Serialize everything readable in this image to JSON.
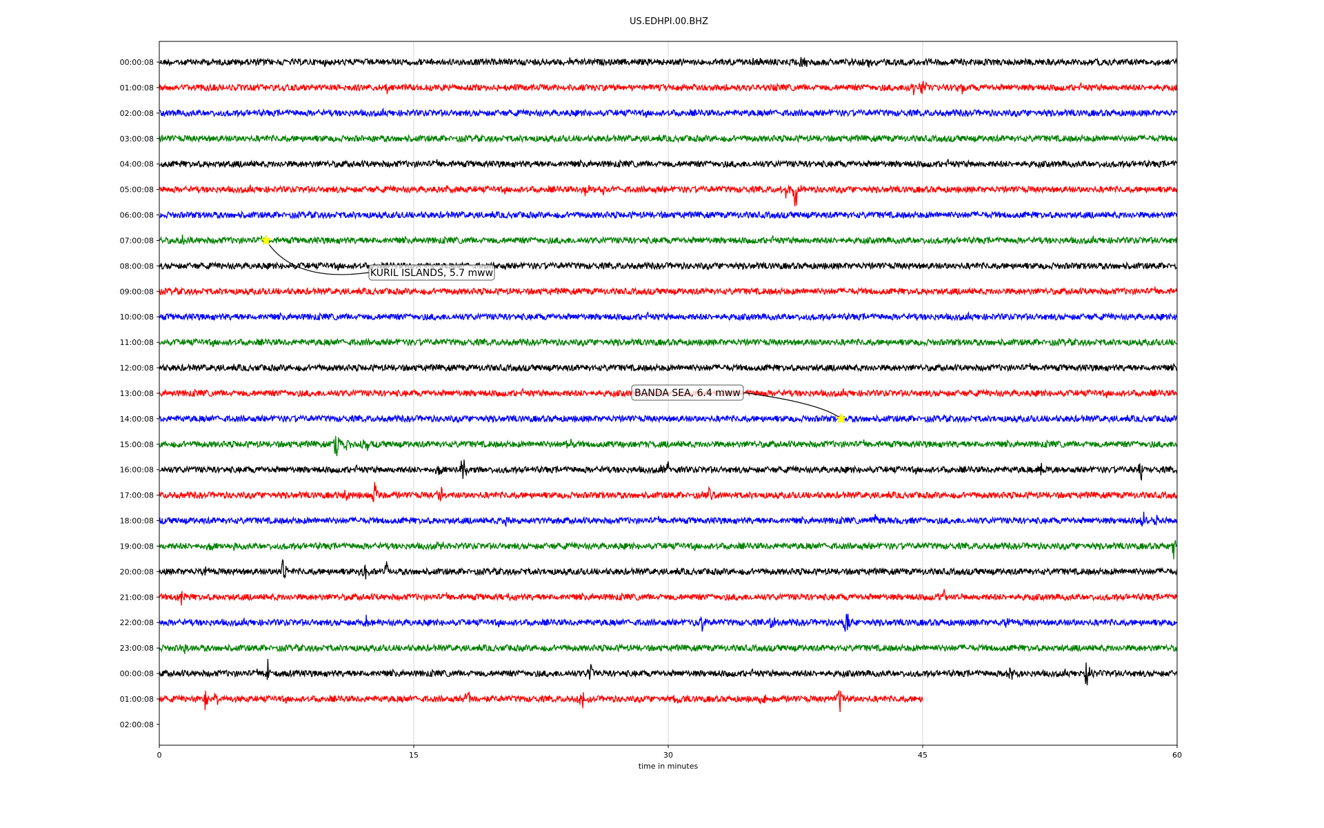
{
  "chart_data": {
    "type": "line",
    "title": "US.EDHPI.00.BHZ",
    "xlabel": "time in minutes",
    "xlim": [
      0,
      60
    ],
    "xticks": [
      "0",
      "15",
      "30",
      "45",
      "60"
    ],
    "xtick_values": [
      0,
      15,
      30,
      45,
      60
    ],
    "grid": "vertical dotted at x ticks",
    "row_labels": [
      "00:00:08",
      "01:00:08",
      "02:00:08",
      "03:00:08",
      "04:00:08",
      "05:00:08",
      "06:00:08",
      "07:00:08",
      "08:00:08",
      "09:00:08",
      "10:00:08",
      "11:00:08",
      "12:00:08",
      "13:00:08",
      "14:00:08",
      "15:00:08",
      "16:00:08",
      "17:00:08",
      "18:00:08",
      "19:00:08",
      "20:00:08",
      "21:00:08",
      "22:00:08",
      "23:00:08",
      "00:00:08",
      "01:00:08",
      "02:00:08"
    ],
    "trace_colors": [
      "#000000",
      "#ff0000",
      "#0000ff",
      "#008000"
    ],
    "trace_end_minutes": {
      "25": 45,
      "26": 0
    },
    "events": [
      {
        "row": 0,
        "t": 37.9,
        "amp": 0.3
      },
      {
        "row": 0,
        "t": 40.8,
        "amp": 0.3
      },
      {
        "row": 0,
        "t": 41.7,
        "amp": 0.35
      },
      {
        "row": 1,
        "t": 13.4,
        "amp": 0.25
      },
      {
        "row": 1,
        "t": 44.5,
        "amp": 0.5
      },
      {
        "row": 1,
        "t": 45.0,
        "amp": 0.45
      },
      {
        "row": 1,
        "t": 47.3,
        "amp": 0.4
      },
      {
        "row": 3,
        "t": 12.5,
        "amp": 0.2
      },
      {
        "row": 5,
        "t": 17.0,
        "amp": 0.2
      },
      {
        "row": 5,
        "t": 25.2,
        "amp": 0.4
      },
      {
        "row": 5,
        "t": 26.2,
        "amp": 0.3
      },
      {
        "row": 5,
        "t": 37.5,
        "amp": 0.9
      },
      {
        "row": 5,
        "t": 36.9,
        "amp": 0.4
      },
      {
        "row": 7,
        "t": 1.4,
        "amp": 0.25
      },
      {
        "row": 15,
        "t": 10.4,
        "amp": 0.8
      },
      {
        "row": 15,
        "t": 11.0,
        "amp": 0.35
      },
      {
        "row": 15,
        "t": 12.2,
        "amp": 0.3
      },
      {
        "row": 15,
        "t": 24.2,
        "amp": 0.35
      },
      {
        "row": 15,
        "t": 27.2,
        "amp": 0.2
      },
      {
        "row": 16,
        "t": 16.5,
        "amp": 0.3
      },
      {
        "row": 16,
        "t": 17.9,
        "amp": 0.6
      },
      {
        "row": 16,
        "t": 30.0,
        "amp": 0.3
      },
      {
        "row": 16,
        "t": 52.0,
        "amp": 0.3
      },
      {
        "row": 16,
        "t": 57.9,
        "amp": 0.5
      },
      {
        "row": 17,
        "t": 11.0,
        "amp": 0.3
      },
      {
        "row": 17,
        "t": 12.7,
        "amp": 0.7
      },
      {
        "row": 17,
        "t": 16.6,
        "amp": 0.4
      },
      {
        "row": 17,
        "t": 32.4,
        "amp": 0.3
      },
      {
        "row": 18,
        "t": 20.5,
        "amp": 0.3
      },
      {
        "row": 18,
        "t": 42.2,
        "amp": 0.2
      },
      {
        "row": 18,
        "t": 58.0,
        "amp": 0.4
      },
      {
        "row": 18,
        "t": 58.8,
        "amp": 0.3
      },
      {
        "row": 19,
        "t": 3.0,
        "amp": 0.2
      },
      {
        "row": 19,
        "t": 16.6,
        "amp": 0.3
      },
      {
        "row": 19,
        "t": 59.8,
        "amp": 0.6
      },
      {
        "row": 20,
        "t": 2.7,
        "amp": 0.3
      },
      {
        "row": 20,
        "t": 7.3,
        "amp": 0.5
      },
      {
        "row": 20,
        "t": 12.1,
        "amp": 0.35
      },
      {
        "row": 20,
        "t": 13.4,
        "amp": 0.4
      },
      {
        "row": 21,
        "t": 1.3,
        "amp": 0.3
      },
      {
        "row": 21,
        "t": 20.5,
        "amp": 0.2
      },
      {
        "row": 21,
        "t": 46.2,
        "amp": 0.4
      },
      {
        "row": 22,
        "t": 12.2,
        "amp": 0.25
      },
      {
        "row": 22,
        "t": 32.0,
        "amp": 0.3
      },
      {
        "row": 22,
        "t": 36.1,
        "amp": 0.3
      },
      {
        "row": 22,
        "t": 40.5,
        "amp": 0.6
      },
      {
        "row": 22,
        "t": 50.0,
        "amp": 0.4
      },
      {
        "row": 23,
        "t": 1.5,
        "amp": 0.25
      },
      {
        "row": 24,
        "t": 6.4,
        "amp": 0.7
      },
      {
        "row": 24,
        "t": 25.4,
        "amp": 0.4
      },
      {
        "row": 24,
        "t": 50.2,
        "amp": 0.3
      },
      {
        "row": 24,
        "t": 54.7,
        "amp": 0.7
      },
      {
        "row": 25,
        "t": 2.7,
        "amp": 0.4
      },
      {
        "row": 25,
        "t": 3.4,
        "amp": 0.35
      },
      {
        "row": 25,
        "t": 18.2,
        "amp": 0.5
      },
      {
        "row": 25,
        "t": 24.9,
        "amp": 0.5
      },
      {
        "row": 25,
        "t": 30.5,
        "amp": 0.3
      },
      {
        "row": 25,
        "t": 35.6,
        "amp": 0.4
      },
      {
        "row": 25,
        "t": 40.1,
        "amp": 0.6
      }
    ],
    "annotations": [
      {
        "text": "KURIL ISLANDS, 5.7 mww",
        "row": 7,
        "t": 6.3
      },
      {
        "text": "BANDA SEA, 6.4 mww",
        "row": 14,
        "t": 40.2
      }
    ]
  }
}
